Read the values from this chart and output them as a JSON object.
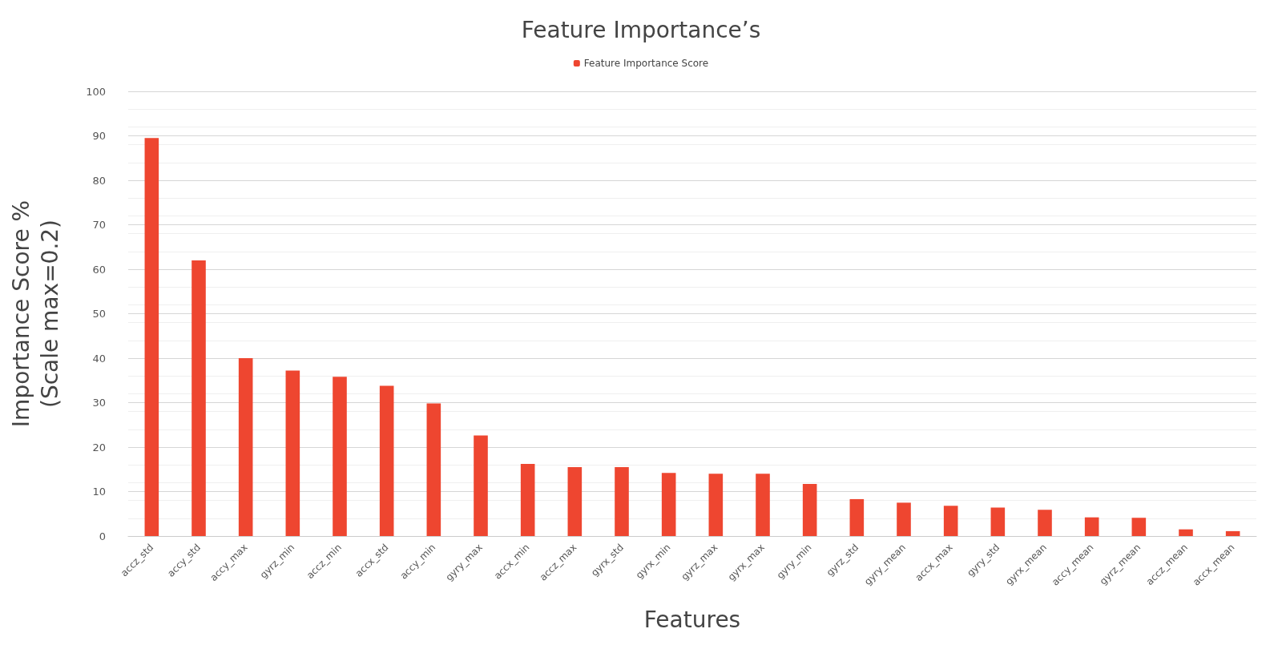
{
  "chart_data": {
    "type": "bar",
    "title": "Feature Importance’s",
    "xlabel": "Features",
    "ylabel": "Importance Score %\n(Scale max=0.2)",
    "categories": [
      "accz_std",
      "accy_std",
      "accy_max",
      "gyrz_min",
      "accz_min",
      "accx_std",
      "accy_min",
      "gyry_max",
      "accx_min",
      "accz_max",
      "gyrx_std",
      "gyrx_min",
      "gyrz_max",
      "gyrx_max",
      "gyry_min",
      "gyrz_std",
      "gyry_mean",
      "accx_max",
      "gyry_std",
      "gyrx_mean",
      "accy_mean",
      "gyrz_mean",
      "accz_mean",
      "accx_mean"
    ],
    "series": [
      {
        "name": "Feature Importance Score",
        "color": "#ee4630",
        "values": [
          89.5,
          62,
          40,
          37.2,
          35.8,
          33.8,
          29.8,
          22.6,
          16.2,
          15.5,
          15.5,
          14.2,
          14,
          14,
          11.7,
          8.3,
          7.5,
          6.8,
          6.4,
          5.9,
          4.2,
          4.1,
          1.5,
          1.1
        ]
      }
    ],
    "ylim": [
      0,
      100
    ],
    "yticks": [
      0,
      10,
      20,
      30,
      40,
      50,
      60,
      70,
      80,
      90,
      100
    ],
    "grid": "y",
    "legend": "top"
  }
}
